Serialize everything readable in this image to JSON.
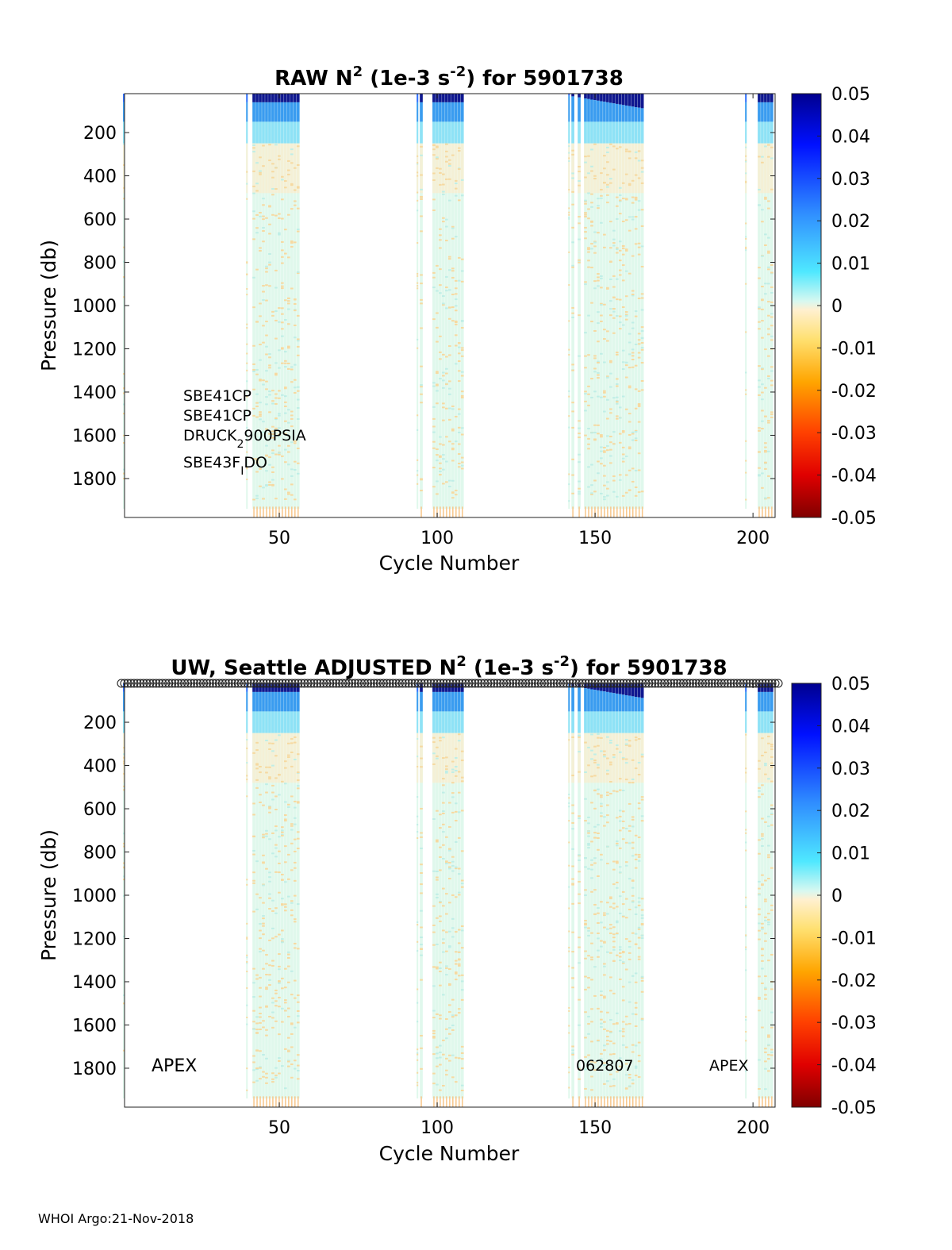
{
  "chart_data": [
    {
      "type": "heatmap",
      "title": {
        "pre": "RAW N",
        "sup1": "2",
        "mid": " (1e-3 s",
        "sup2": "-2",
        "post": ") for 5901738"
      },
      "xlabel": "Cycle Number",
      "ylabel": "Pressure (db)",
      "xlim": [
        1,
        207
      ],
      "ylim": [
        1980,
        20
      ],
      "xticks": [
        "50",
        "100",
        "150",
        "200"
      ],
      "yticks": [
        "200",
        "400",
        "600",
        "800",
        "1000",
        "1200",
        "1400",
        "1600",
        "1800"
      ],
      "colorbar": {
        "range": [
          -0.05,
          0.05
        ],
        "ticks": [
          "0.05",
          "0.04",
          "0.03",
          "0.02",
          "0.01",
          "0",
          "-0.01",
          "-0.02",
          "-0.03",
          "-0.04",
          "-0.05"
        ]
      },
      "profile_cycles": [
        1,
        40,
        42,
        43,
        44,
        45,
        46,
        47,
        48,
        49,
        50,
        51,
        52,
        53,
        54,
        55,
        56,
        94,
        95,
        99,
        100,
        101,
        102,
        103,
        104,
        105,
        106,
        107,
        108,
        142,
        143,
        145,
        147,
        148,
        149,
        150,
        151,
        152,
        153,
        154,
        155,
        156,
        157,
        158,
        159,
        160,
        161,
        162,
        163,
        164,
        165,
        198,
        202,
        203,
        204,
        205,
        206
      ],
      "annotations": {
        "sensors": [
          "SBE41CP",
          "SBE41CP",
          "DRUCK",
          "900PSIA",
          "SBE43F",
          "DO"
        ],
        "sensor_sub": [
          "2",
          "I"
        ]
      }
    },
    {
      "type": "heatmap",
      "title": {
        "pre": "UW, Seattle  ADJUSTED N",
        "sup1": "2",
        "mid": " (1e-3 s",
        "sup2": "-2",
        "post": ") for 5901738"
      },
      "xlabel": "Cycle Number",
      "ylabel": "Pressure (db)",
      "xlim": [
        1,
        207
      ],
      "ylim": [
        1980,
        20
      ],
      "xticks": [
        "50",
        "100",
        "150",
        "200"
      ],
      "yticks": [
        "200",
        "400",
        "600",
        "800",
        "1000",
        "1200",
        "1400",
        "1600",
        "1800"
      ],
      "colorbar": {
        "range": [
          -0.05,
          0.05
        ],
        "ticks": [
          "0.05",
          "0.04",
          "0.03",
          "0.02",
          "0.01",
          "0",
          "-0.01",
          "-0.02",
          "-0.03",
          "-0.04",
          "-0.05"
        ]
      },
      "profile_cycles": [
        1,
        40,
        42,
        43,
        44,
        45,
        46,
        47,
        48,
        49,
        50,
        51,
        52,
        53,
        54,
        55,
        56,
        94,
        95,
        99,
        100,
        101,
        102,
        103,
        104,
        105,
        106,
        107,
        108,
        142,
        143,
        145,
        147,
        148,
        149,
        150,
        151,
        152,
        153,
        154,
        155,
        156,
        157,
        158,
        159,
        160,
        161,
        162,
        163,
        164,
        165,
        198,
        202,
        203,
        204,
        205,
        206
      ],
      "annotations": {
        "left": "APEX",
        "middle": "062807",
        "right": "APEX"
      },
      "qc_marker_row": "circles along top edge at each cycle"
    }
  ],
  "footer": "WHOI Argo:21-Nov-2018"
}
